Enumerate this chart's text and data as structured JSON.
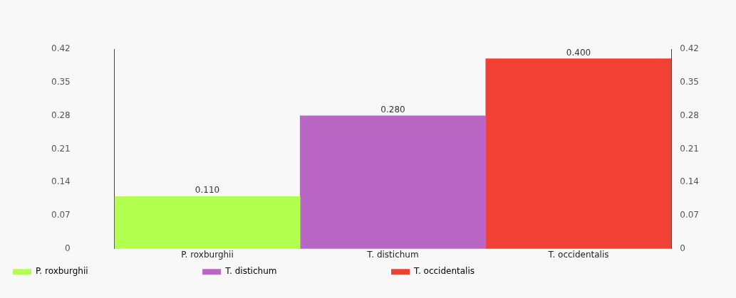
{
  "chart_data": {
    "type": "bar",
    "categories": [
      "P. roxburghii",
      "T. distichum",
      "T. occidentalis"
    ],
    "series": [
      {
        "name": "P. roxburghii",
        "color": "#b2ff50",
        "values": [
          0.11,
          null,
          null
        ],
        "value_labels": [
          "0.110",
          null,
          null
        ]
      },
      {
        "name": "T. distichum",
        "color": "#b966c4",
        "values": [
          null,
          0.28,
          null
        ],
        "value_labels": [
          null,
          "0.280",
          null
        ]
      },
      {
        "name": "T. occidentalis",
        "color": "#f04134",
        "values": [
          null,
          null,
          0.4
        ],
        "value_labels": [
          null,
          null,
          "0.400"
        ]
      }
    ],
    "ylim": [
      0,
      0.42
    ],
    "yticks": [
      0,
      0.07,
      0.14,
      0.21,
      0.28,
      0.35,
      0.42
    ],
    "y2lim": [
      0,
      0.42
    ],
    "y2ticks": [
      0,
      0.07,
      0.14,
      0.21,
      0.28,
      0.35,
      0.42
    ],
    "grid": false,
    "legend": "bottom"
  }
}
